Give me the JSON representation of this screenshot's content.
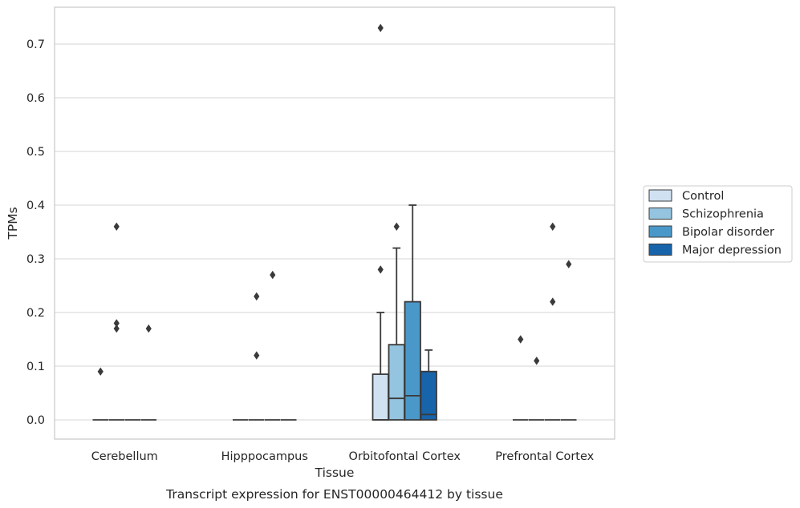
{
  "chart_data": {
    "type": "boxplot",
    "xlabel": "Tissue",
    "ylabel": "TPMs",
    "caption": "Transcript expression for ENST00000464412 by tissue",
    "ylim": [
      -0.035,
      0.77
    ],
    "yticks": [
      "0.0",
      "0.1",
      "0.2",
      "0.3",
      "0.4",
      "0.5",
      "0.6",
      "0.7"
    ],
    "ytick_values": [
      0,
      0.1,
      0.2,
      0.3,
      0.4,
      0.5,
      0.6,
      0.7
    ],
    "grid": "horizontal",
    "legend_position": "right",
    "categories": [
      "Cerebellum",
      "Hipppocampus",
      "Orbitofontal Cortex",
      "Prefrontal Cortex"
    ],
    "series": [
      {
        "name": "Control",
        "color": "#d0e1f2",
        "boxes": [
          {
            "q1": 0,
            "median": 0,
            "q3": 0,
            "whislo": 0,
            "whishi": 0,
            "fliers": [
              0.09
            ]
          },
          {
            "q1": 0,
            "median": 0,
            "q3": 0,
            "whislo": 0,
            "whishi": 0,
            "fliers": []
          },
          {
            "q1": 0,
            "median": 0,
            "q3": 0.085,
            "whislo": 0,
            "whishi": 0.2,
            "fliers": [
              0.28,
              0.73
            ]
          },
          {
            "q1": 0,
            "median": 0,
            "q3": 0,
            "whislo": 0,
            "whishi": 0,
            "fliers": [
              0.15
            ]
          }
        ]
      },
      {
        "name": "Schizophrenia",
        "color": "#94c4df",
        "boxes": [
          {
            "q1": 0,
            "median": 0,
            "q3": 0,
            "whislo": 0,
            "whishi": 0,
            "fliers": [
              0.36,
              0.18,
              0.17
            ]
          },
          {
            "q1": 0,
            "median": 0,
            "q3": 0,
            "whislo": 0,
            "whishi": 0,
            "fliers": [
              0.12,
              0.23
            ]
          },
          {
            "q1": 0,
            "median": 0.04,
            "q3": 0.14,
            "whislo": 0,
            "whishi": 0.32,
            "fliers": [
              0.36
            ]
          },
          {
            "q1": 0,
            "median": 0,
            "q3": 0,
            "whislo": 0,
            "whishi": 0,
            "fliers": [
              0.11
            ]
          }
        ]
      },
      {
        "name": "Bipolar disorder",
        "color": "#4a98c9",
        "boxes": [
          {
            "q1": 0,
            "median": 0,
            "q3": 0,
            "whislo": 0,
            "whishi": 0,
            "fliers": []
          },
          {
            "q1": 0,
            "median": 0,
            "q3": 0,
            "whislo": 0,
            "whishi": 0,
            "fliers": [
              0.27
            ]
          },
          {
            "q1": 0,
            "median": 0.045,
            "q3": 0.22,
            "whislo": 0,
            "whishi": 0.4,
            "fliers": []
          },
          {
            "q1": 0,
            "median": 0,
            "q3": 0,
            "whislo": 0,
            "whishi": 0,
            "fliers": [
              0.36,
              0.22
            ]
          }
        ]
      },
      {
        "name": "Major depression",
        "color": "#1764ab",
        "boxes": [
          {
            "q1": 0,
            "median": 0,
            "q3": 0,
            "whislo": 0,
            "whishi": 0,
            "fliers": [
              0.17
            ]
          },
          {
            "q1": 0,
            "median": 0,
            "q3": 0,
            "whislo": 0,
            "whishi": 0,
            "fliers": []
          },
          {
            "q1": 0,
            "median": 0.01,
            "q3": 0.09,
            "whislo": 0,
            "whishi": 0.13,
            "fliers": []
          },
          {
            "q1": 0,
            "median": 0,
            "q3": 0,
            "whislo": 0,
            "whishi": 0,
            "fliers": [
              0.29
            ]
          }
        ]
      }
    ]
  }
}
